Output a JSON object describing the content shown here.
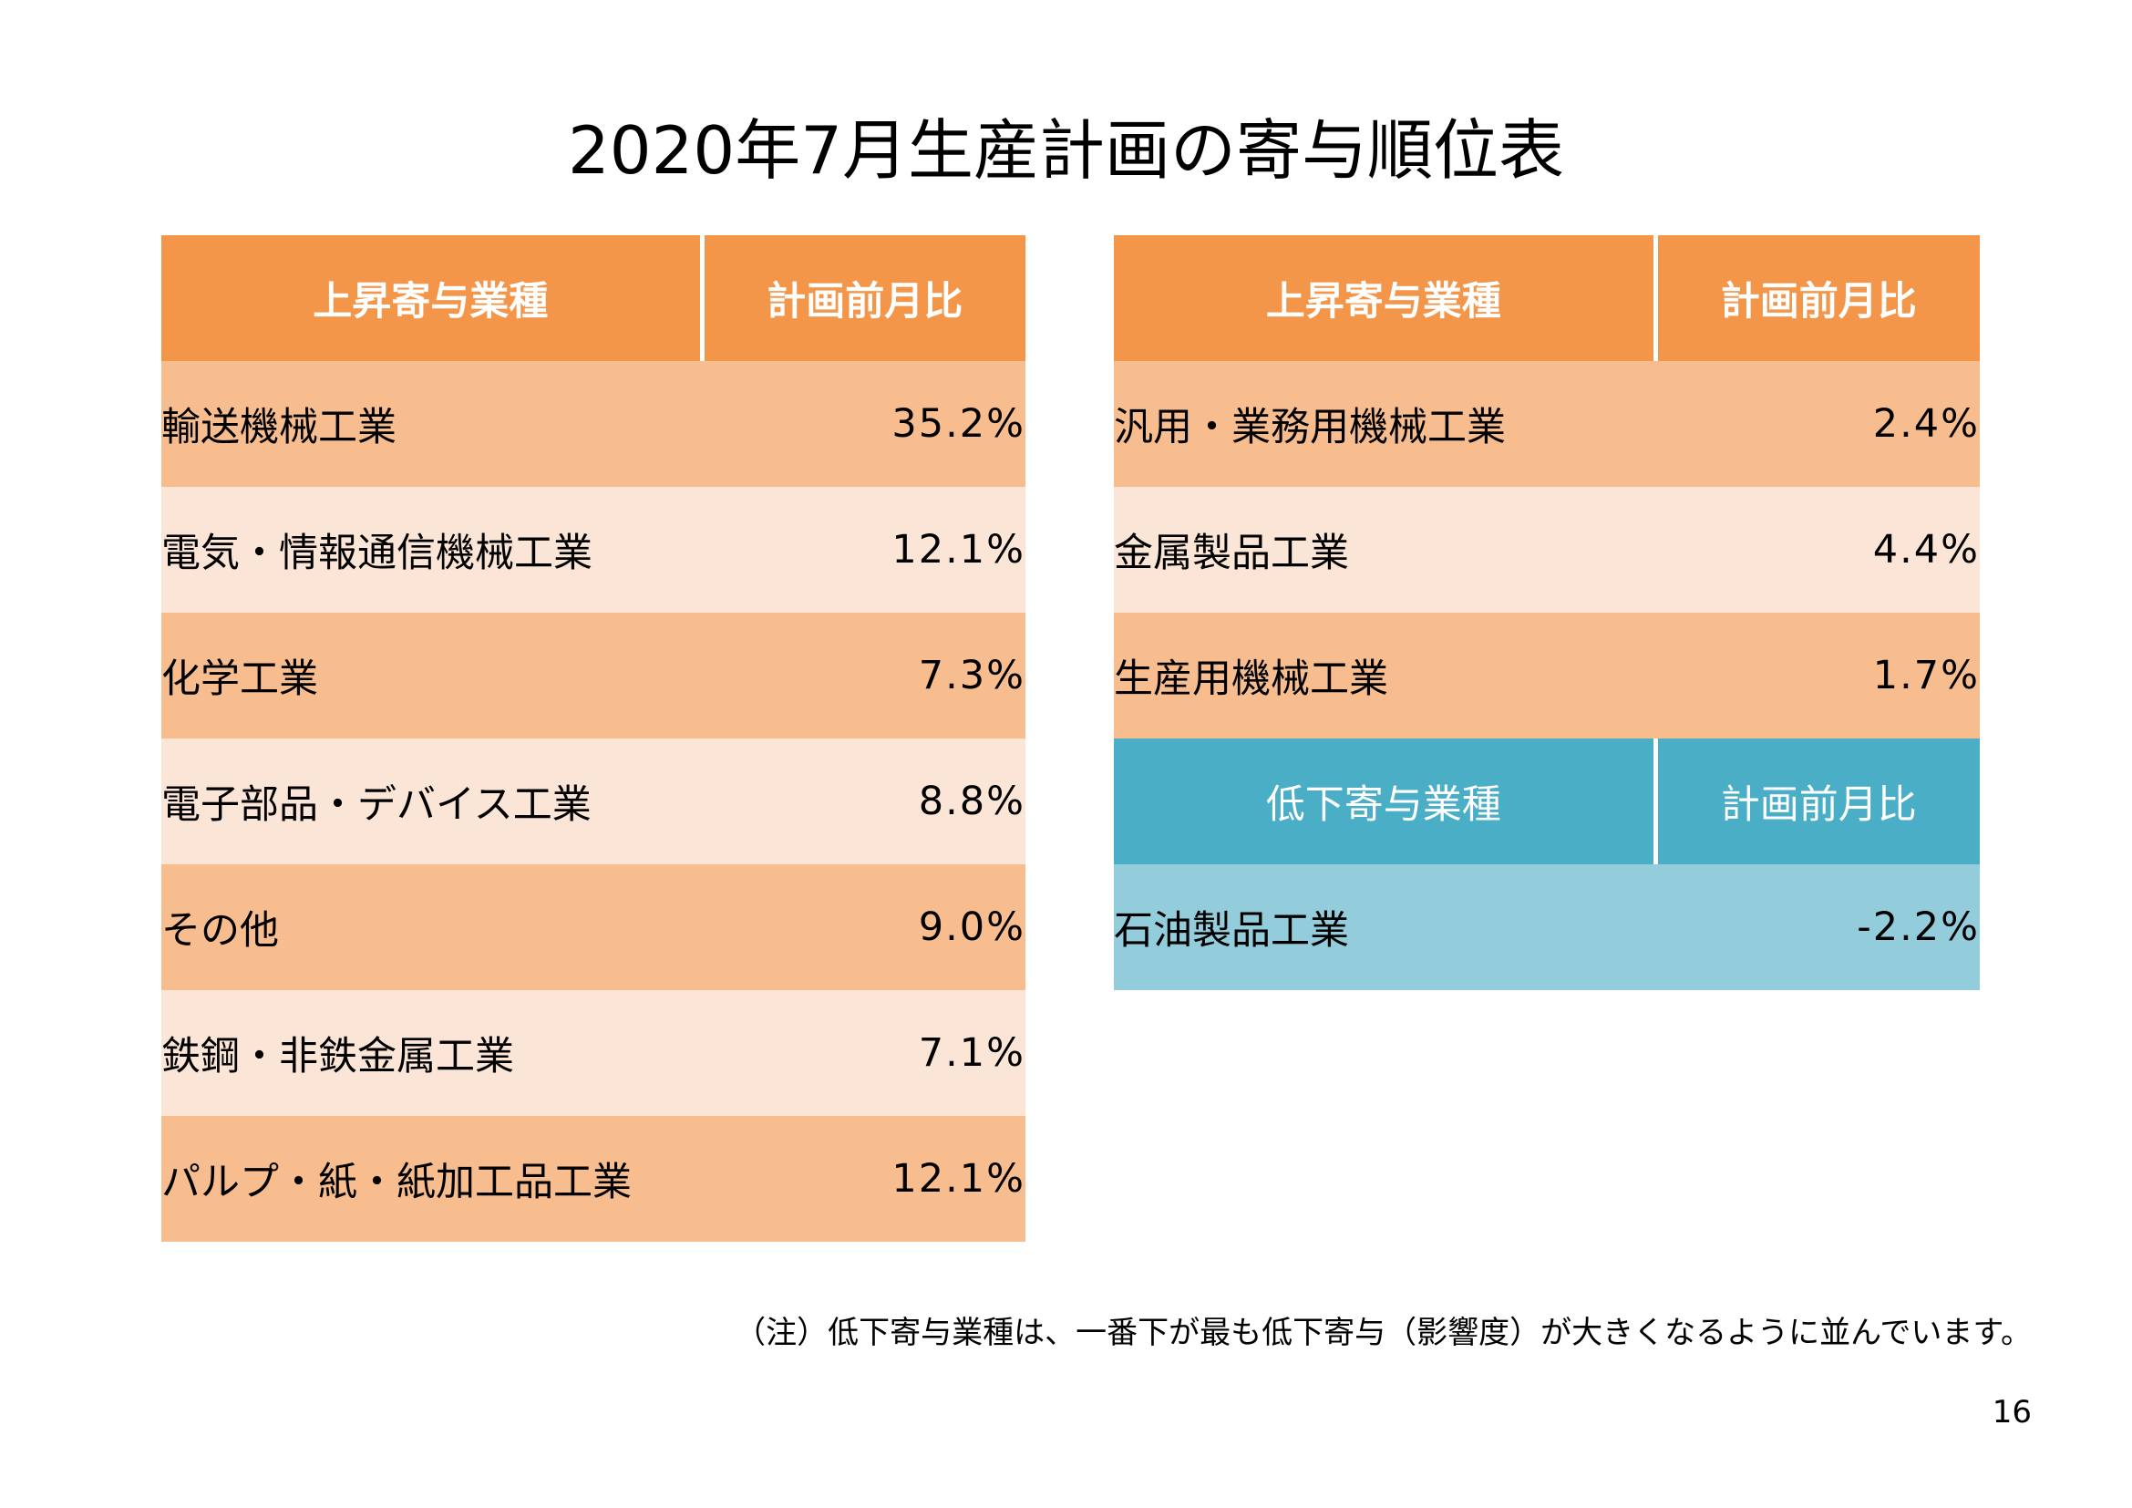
{
  "title": "2020年7月生産計画の寄与順位表",
  "left_table": {
    "header": {
      "name": "上昇寄与業種",
      "value": "計画前月比"
    },
    "rows": [
      {
        "name": "輸送機械工業",
        "value": "35.2%"
      },
      {
        "name": "電気・情報通信機械工業",
        "value": "12.1%"
      },
      {
        "name": "化学工業",
        "value": "7.3%"
      },
      {
        "name": "電子部品・デバイス工業",
        "value": "8.8%"
      },
      {
        "name": "その他",
        "value": "9.0%"
      },
      {
        "name": "鉄鋼・非鉄金属工業",
        "value": "7.1%"
      },
      {
        "name": "パルプ・紙・紙加工品工業",
        "value": "12.1%"
      }
    ]
  },
  "right_table": {
    "up_header": {
      "name": "上昇寄与業種",
      "value": "計画前月比"
    },
    "up_rows": [
      {
        "name": "汎用・業務用機械工業",
        "value": "2.4%"
      },
      {
        "name": "金属製品工業",
        "value": "4.4%"
      },
      {
        "name": "生産用機械工業",
        "value": "1.7%"
      }
    ],
    "down_header": {
      "name": "低下寄与業種",
      "value": "計画前月比"
    },
    "down_rows": [
      {
        "name": "石油製品工業",
        "value": "-2.2%"
      }
    ]
  },
  "note": "（注）低下寄与業種は、一番下が最も低下寄与（影響度）が大きくなるように並んでいます。",
  "page_number": "16",
  "colors": {
    "header_orange": "#f4964a",
    "row_dark_orange": "#f7bd8f",
    "row_light_orange": "#fbe5d6",
    "header_blue": "#4aaec6",
    "row_teal": "#93cddc"
  }
}
